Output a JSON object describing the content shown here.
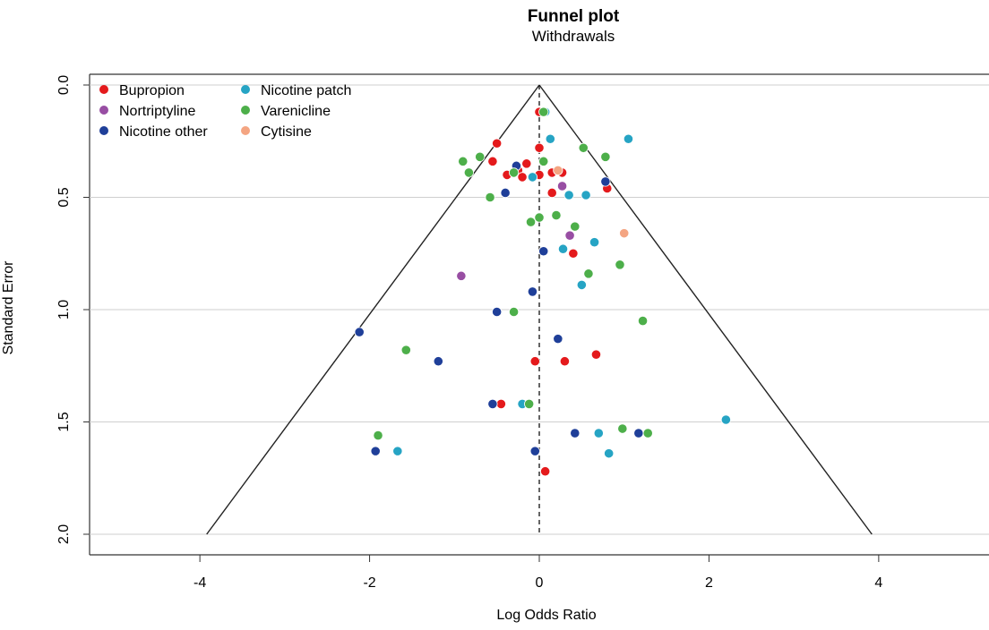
{
  "chart_data": {
    "type": "scatter",
    "title": "Funnel plot",
    "subtitle": "Withdrawals",
    "xlabel": "Log Odds Ratio",
    "ylabel": "Standard Error",
    "xlim": [
      -5.3,
      5.3
    ],
    "ylim": [
      0,
      2.0
    ],
    "y_reversed": true,
    "x_ticks": [
      -4,
      -2,
      0,
      2,
      4
    ],
    "y_ticks": [
      0.0,
      0.5,
      1.0,
      1.5,
      2.0
    ],
    "y_tick_labels": [
      "0.0",
      "0.5",
      "1.0",
      "1.5",
      "2.0"
    ],
    "grid": "horizontal",
    "legend_position": "top-left",
    "reference_line_x": 0,
    "funnel_limit_multiplier": 1.96,
    "series": [
      {
        "name": "Bupropion",
        "color": "#e41a1c",
        "points": [
          [
            0.0,
            0.12
          ],
          [
            -0.5,
            0.26
          ],
          [
            -0.55,
            0.34
          ],
          [
            0.0,
            0.28
          ],
          [
            -0.15,
            0.35
          ],
          [
            -0.25,
            0.38
          ],
          [
            -0.38,
            0.4
          ],
          [
            -0.2,
            0.41
          ],
          [
            0.0,
            0.4
          ],
          [
            0.15,
            0.39
          ],
          [
            0.27,
            0.39
          ],
          [
            0.15,
            0.48
          ],
          [
            0.8,
            0.46
          ],
          [
            0.4,
            0.75
          ],
          [
            -0.05,
            1.23
          ],
          [
            0.3,
            1.23
          ],
          [
            0.67,
            1.2
          ],
          [
            -0.45,
            1.42
          ],
          [
            0.07,
            1.72
          ]
        ]
      },
      {
        "name": "Nortriptyline",
        "color": "#984ea3",
        "points": [
          [
            0.27,
            0.45
          ],
          [
            0.36,
            0.67
          ],
          [
            -0.92,
            0.85
          ]
        ]
      },
      {
        "name": "Nicotine other",
        "color": "#1f3f99",
        "points": [
          [
            -0.27,
            0.36
          ],
          [
            -0.4,
            0.48
          ],
          [
            0.78,
            0.43
          ],
          [
            0.05,
            0.74
          ],
          [
            -0.08,
            0.92
          ],
          [
            -0.5,
            1.01
          ],
          [
            0.22,
            1.13
          ],
          [
            -2.12,
            1.1
          ],
          [
            -1.19,
            1.23
          ],
          [
            -0.55,
            1.42
          ],
          [
            0.42,
            1.55
          ],
          [
            1.17,
            1.55
          ],
          [
            -1.93,
            1.63
          ],
          [
            -0.05,
            1.63
          ]
        ]
      },
      {
        "name": "Nicotine patch",
        "color": "#26a4c4",
        "points": [
          [
            0.07,
            0.12
          ],
          [
            1.05,
            0.24
          ],
          [
            0.13,
            0.24
          ],
          [
            -0.08,
            0.41
          ],
          [
            0.35,
            0.49
          ],
          [
            0.55,
            0.49
          ],
          [
            0.65,
            0.7
          ],
          [
            0.28,
            0.73
          ],
          [
            0.5,
            0.89
          ],
          [
            -0.2,
            1.42
          ],
          [
            2.2,
            1.49
          ],
          [
            0.7,
            1.55
          ],
          [
            -1.67,
            1.63
          ],
          [
            0.82,
            1.64
          ]
        ]
      },
      {
        "name": "Varenicline",
        "color": "#4daf4a",
        "points": [
          [
            0.05,
            0.12
          ],
          [
            0.52,
            0.28
          ],
          [
            0.78,
            0.32
          ],
          [
            -0.9,
            0.34
          ],
          [
            -0.7,
            0.32
          ],
          [
            -0.83,
            0.39
          ],
          [
            0.05,
            0.34
          ],
          [
            -0.3,
            0.39
          ],
          [
            -0.58,
            0.5
          ],
          [
            -0.1,
            0.61
          ],
          [
            0.0,
            0.59
          ],
          [
            0.2,
            0.58
          ],
          [
            0.42,
            0.63
          ],
          [
            0.95,
            0.8
          ],
          [
            0.58,
            0.84
          ],
          [
            -0.3,
            1.01
          ],
          [
            1.22,
            1.05
          ],
          [
            -1.57,
            1.18
          ],
          [
            -0.12,
            1.42
          ],
          [
            0.98,
            1.53
          ],
          [
            1.28,
            1.55
          ],
          [
            -1.9,
            1.56
          ]
        ]
      },
      {
        "name": "Cytisine",
        "color": "#f4a582",
        "points": [
          [
            0.22,
            0.38
          ],
          [
            1.0,
            0.66
          ]
        ]
      }
    ]
  }
}
